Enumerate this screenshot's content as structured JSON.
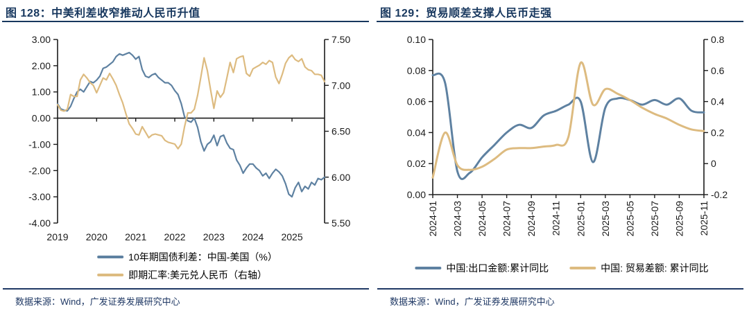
{
  "colors": {
    "line_blue": "#5E81A1",
    "line_tan": "#DDBB80",
    "navy_accent": "#17375E",
    "axis_text": "#1A1A1A"
  },
  "chart_data": [
    {
      "type": "line",
      "title": "图 128：中美利差收窄推动人民币升值",
      "source_note": "数据来源：Wind，广发证券发展研究中心",
      "x_start": "2019-01",
      "x_frequency": "monthly",
      "x_tick_labels": [
        "2019",
        "2020",
        "2021",
        "2022",
        "2023",
        "2024",
        "2025"
      ],
      "left_axis": {
        "range": [
          -4.0,
          3.0
        ],
        "tick_labels": [
          "3.00",
          "2.00",
          "1.00",
          "0.00",
          "-1.00",
          "-2.00",
          "-3.00",
          "-4.00"
        ]
      },
      "right_axis": {
        "range": [
          5.5,
          7.5
        ],
        "tick_labels": [
          "7.50",
          "7.00",
          "6.50",
          "6.00",
          "5.50"
        ]
      },
      "grid": false,
      "legend_position": "bottom",
      "series": [
        {
          "name": "10年期国债利差：中国-美国（%）",
          "axis": "left",
          "color": "#5E81A1",
          "values": [
            0.55,
            0.35,
            0.3,
            0.28,
            0.45,
            0.75,
            1.0,
            1.1,
            1.0,
            1.2,
            1.4,
            1.35,
            1.45,
            1.6,
            1.9,
            1.95,
            2.05,
            2.15,
            2.35,
            2.45,
            2.4,
            2.45,
            2.5,
            2.4,
            2.25,
            2.35,
            1.85,
            1.6,
            1.55,
            1.65,
            1.7,
            1.55,
            1.45,
            1.35,
            1.35,
            1.25,
            1.05,
            0.9,
            0.55,
            0.05,
            -0.1,
            -0.15,
            0.0,
            -0.35,
            -0.9,
            -1.25,
            -1.0,
            -0.9,
            -0.65,
            -1.05,
            -0.7,
            -0.65,
            -0.95,
            -1.15,
            -1.2,
            -1.6,
            -1.8,
            -2.1,
            -1.9,
            -1.75,
            -1.75,
            -1.9,
            -2.0,
            -2.2,
            -2.1,
            -2.3,
            -2.1,
            -1.95,
            -2.05,
            -2.2,
            -2.5,
            -2.9,
            -3.0,
            -2.65,
            -2.45,
            -2.8,
            -2.6,
            -2.7,
            -2.45,
            -2.55,
            -2.3,
            -2.35,
            -2.25
          ]
        },
        {
          "name": "即期汇率:美元兑人民币（右轴）",
          "axis": "right",
          "color": "#DDBB80",
          "values": [
            6.79,
            6.73,
            6.72,
            6.74,
            6.9,
            6.88,
            6.88,
            7.06,
            7.12,
            7.08,
            7.03,
            7.0,
            6.92,
            7.0,
            7.08,
            7.06,
            7.13,
            7.07,
            7.0,
            6.9,
            6.81,
            6.69,
            6.58,
            6.53,
            6.47,
            6.46,
            6.55,
            6.49,
            6.43,
            6.46,
            6.47,
            6.46,
            6.45,
            6.4,
            6.38,
            6.37,
            6.36,
            6.31,
            6.36,
            6.55,
            6.7,
            6.7,
            6.74,
            6.89,
            7.09,
            7.3,
            7.16,
            6.95,
            6.75,
            6.94,
            6.87,
            6.92,
            7.08,
            7.25,
            7.14,
            7.29,
            7.31,
            7.32,
            7.13,
            7.1,
            7.18,
            7.2,
            7.22,
            7.25,
            7.23,
            7.27,
            7.25,
            7.09,
            7.02,
            7.12,
            7.24,
            7.3,
            7.33,
            7.28,
            7.26,
            7.29,
            7.2,
            7.17,
            7.16,
            7.12,
            7.12,
            7.11,
            7.04
          ]
        }
      ]
    },
    {
      "type": "line",
      "title": "图 129：贸易顺差支撑人民币走强",
      "source_note": "数据来源：Wind，广发证券发展研究中心",
      "x_categories": [
        "2024-01",
        "2024-02",
        "2024-03",
        "2024-04",
        "2024-05",
        "2024-06",
        "2024-07",
        "2024-08",
        "2024-09",
        "2024-10",
        "2024-11",
        "2024-12",
        "2025-01",
        "2025-02",
        "2025-03",
        "2025-04",
        "2025-05",
        "2025-06",
        "2025-07",
        "2025-08",
        "2025-09",
        "2025-10",
        "2025-11"
      ],
      "x_tick_labels": [
        "2024-01",
        "2024-03",
        "2024-05",
        "2024-07",
        "2024-09",
        "2024-11",
        "2025-01",
        "2025-03",
        "2025-05",
        "2025-07",
        "2025-09",
        "2025-11"
      ],
      "left_axis": {
        "range": [
          0.0,
          0.1
        ],
        "tick_labels": [
          "0.10",
          "0.08",
          "0.06",
          "0.04",
          "0.02",
          "0.00"
        ]
      },
      "right_axis": {
        "range": [
          -0.2,
          0.8
        ],
        "tick_labels": [
          "0.8",
          "0.6",
          "0.4",
          "0.2",
          "0",
          "-0.2"
        ]
      },
      "grid": false,
      "legend_position": "bottom",
      "series": [
        {
          "name": "中国:出口金额:累计同比",
          "axis": "left",
          "color": "#5E81A1",
          "values": [
            0.077,
            0.072,
            0.015,
            0.014,
            0.024,
            0.032,
            0.04,
            0.045,
            0.043,
            0.051,
            0.054,
            0.058,
            0.06,
            0.021,
            0.056,
            0.062,
            0.061,
            0.058,
            0.061,
            0.058,
            0.062,
            0.054,
            0.053
          ]
        },
        {
          "name": "中国: 贸易差额: 累计同比",
          "axis": "right",
          "color": "#DDBB80",
          "values": [
            -0.09,
            0.2,
            -0.01,
            -0.04,
            -0.02,
            0.03,
            0.09,
            0.1,
            0.1,
            0.11,
            0.12,
            0.17,
            0.65,
            0.38,
            0.48,
            0.45,
            0.41,
            0.36,
            0.32,
            0.29,
            0.25,
            0.22,
            0.21
          ]
        }
      ]
    }
  ]
}
